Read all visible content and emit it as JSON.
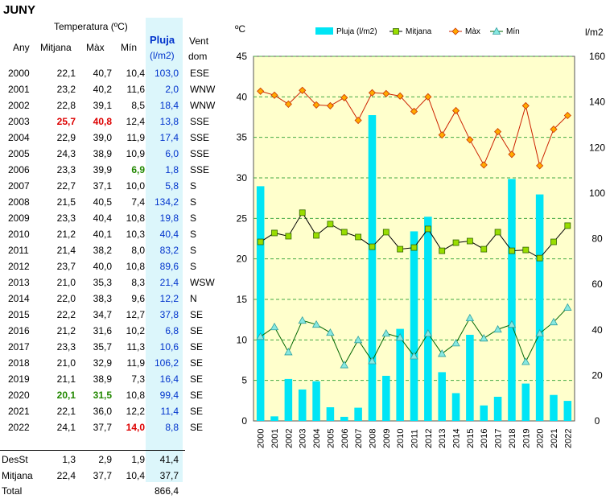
{
  "title": "JUNY",
  "table": {
    "header_group": "Temperatura (ºC)",
    "col_any": "Any",
    "col_mitjana": "Mitjana",
    "col_max": "Màx",
    "col_min": "Mín",
    "col_pluja": "Pluja",
    "col_pluja_unit": "(l/m2)",
    "col_vent": "Vent",
    "col_vent2": "dom",
    "rows": [
      {
        "any": "2000",
        "mitjana": "22,1",
        "max": "40,7",
        "min": "10,4",
        "pluja": "103,0",
        "vent": "ESE"
      },
      {
        "any": "2001",
        "mitjana": "23,2",
        "max": "40,2",
        "min": "11,6",
        "pluja": "2,0",
        "vent": "WNW"
      },
      {
        "any": "2002",
        "mitjana": "22,8",
        "max": "39,1",
        "min": "8,5",
        "pluja": "18,4",
        "vent": "WNW"
      },
      {
        "any": "2003",
        "mitjana": "25,7",
        "max": "40,8",
        "min": "12,4",
        "pluja": "13,8",
        "vent": "SSE",
        "hl_mitjana": "red",
        "hl_max": "red"
      },
      {
        "any": "2004",
        "mitjana": "22,9",
        "max": "39,0",
        "min": "11,9",
        "pluja": "17,4",
        "vent": "SSE"
      },
      {
        "any": "2005",
        "mitjana": "24,3",
        "max": "38,9",
        "min": "10,9",
        "pluja": "6,0",
        "vent": "SSE"
      },
      {
        "any": "2006",
        "mitjana": "23,3",
        "max": "39,9",
        "min": "6,9",
        "pluja": "1,8",
        "vent": "SSE",
        "hl_min": "green"
      },
      {
        "any": "2007",
        "mitjana": "22,7",
        "max": "37,1",
        "min": "10,0",
        "pluja": "5,8",
        "vent": "S"
      },
      {
        "any": "2008",
        "mitjana": "21,5",
        "max": "40,5",
        "min": "7,4",
        "pluja": "134,2",
        "vent": "S"
      },
      {
        "any": "2009",
        "mitjana": "23,3",
        "max": "40,4",
        "min": "10,8",
        "pluja": "19,8",
        "vent": "S"
      },
      {
        "any": "2010",
        "mitjana": "21,2",
        "max": "40,1",
        "min": "10,3",
        "pluja": "40,4",
        "vent": "S"
      },
      {
        "any": "2011",
        "mitjana": "21,4",
        "max": "38,2",
        "min": "8,0",
        "pluja": "83,2",
        "vent": "S"
      },
      {
        "any": "2012",
        "mitjana": "23,7",
        "max": "40,0",
        "min": "10,8",
        "pluja": "89,6",
        "vent": "S"
      },
      {
        "any": "2013",
        "mitjana": "21,0",
        "max": "35,3",
        "min": "8,3",
        "pluja": "21,4",
        "vent": "WSW"
      },
      {
        "any": "2014",
        "mitjana": "22,0",
        "max": "38,3",
        "min": "9,6",
        "pluja": "12,2",
        "vent": "N"
      },
      {
        "any": "2015",
        "mitjana": "22,2",
        "max": "34,7",
        "min": "12,7",
        "pluja": "37,8",
        "vent": "SE"
      },
      {
        "any": "2016",
        "mitjana": "21,2",
        "max": "31,6",
        "min": "10,2",
        "pluja": "6,8",
        "vent": "SE"
      },
      {
        "any": "2017",
        "mitjana": "23,3",
        "max": "35,7",
        "min": "11,3",
        "pluja": "10,6",
        "vent": "SE"
      },
      {
        "any": "2018",
        "mitjana": "21,0",
        "max": "32,9",
        "min": "11,9",
        "pluja": "106,2",
        "vent": "SE"
      },
      {
        "any": "2019",
        "mitjana": "21,1",
        "max": "38,9",
        "min": "7,3",
        "pluja": "16,4",
        "vent": "SE"
      },
      {
        "any": "2020",
        "mitjana": "20,1",
        "max": "31,5",
        "min": "10,8",
        "pluja": "99,4",
        "vent": "SE",
        "hl_mitjana": "green",
        "hl_max": "green"
      },
      {
        "any": "2021",
        "mitjana": "22,1",
        "max": "36,0",
        "min": "12,2",
        "pluja": "11,4",
        "vent": "SE"
      },
      {
        "any": "2022",
        "mitjana": "24,1",
        "max": "37,7",
        "min": "14,0",
        "pluja": "8,8",
        "vent": "SE",
        "hl_min": "red"
      }
    ],
    "desst": {
      "label": "DesSt",
      "mitjana": "1,3",
      "max": "2,9",
      "min": "1,9",
      "pluja": "41,4"
    },
    "mitjana_row": {
      "label": "Mitjana",
      "mitjana": "22,4",
      "max": "37,7",
      "min": "10,4",
      "pluja": "37,7"
    },
    "total": {
      "label": "Total",
      "pluja": "866,4"
    }
  },
  "colors": {
    "highlight_red": "#dd0000",
    "highlight_green": "#228800",
    "plot_bg": "#ffffcc",
    "bar": "#00e5f5",
    "mitjana_line": "#000000",
    "mitjana_marker": "#99dd00",
    "max_line": "#cc2200",
    "max_marker": "#ffaa00",
    "min_line": "#006600",
    "min_marker": "#88e8e0",
    "grid": "#44aa44"
  },
  "chart_data": {
    "type": "bar+line",
    "left_axis_label": "ºC",
    "right_axis_label": "l/m2",
    "ylim_left": [
      0,
      45
    ],
    "ylim_right": [
      0,
      160
    ],
    "left_ticks": [
      0,
      5,
      10,
      15,
      20,
      25,
      30,
      35,
      40,
      45
    ],
    "right_ticks": [
      0,
      20,
      40,
      60,
      80,
      100,
      120,
      140,
      160
    ],
    "grid": "horizontal dashed",
    "legend_position": "top",
    "x": [
      "2000",
      "2001",
      "2002",
      "2003",
      "2004",
      "2005",
      "2006",
      "2007",
      "2008",
      "2009",
      "2010",
      "2011",
      "2012",
      "2013",
      "2014",
      "2015",
      "2016",
      "2017",
      "2018",
      "2019",
      "2020",
      "2021",
      "2022"
    ],
    "bars": {
      "name": "Pluja (l/m2)",
      "axis": "right",
      "values": [
        103.0,
        2.0,
        18.4,
        13.8,
        17.4,
        6.0,
        1.8,
        5.8,
        134.2,
        19.8,
        40.4,
        83.2,
        89.6,
        21.4,
        12.2,
        37.8,
        6.8,
        10.6,
        106.2,
        16.4,
        99.4,
        11.4,
        8.8
      ]
    },
    "series": [
      {
        "name": "Mitjana",
        "axis": "left",
        "marker": "square",
        "values": [
          22.1,
          23.2,
          22.8,
          25.7,
          22.9,
          24.3,
          23.3,
          22.7,
          21.5,
          23.3,
          21.2,
          21.4,
          23.7,
          21.0,
          22.0,
          22.2,
          21.2,
          23.3,
          21.0,
          21.1,
          20.1,
          22.1,
          24.1
        ]
      },
      {
        "name": "Màx",
        "axis": "left",
        "marker": "diamond",
        "values": [
          40.7,
          40.2,
          39.1,
          40.8,
          39.0,
          38.9,
          39.9,
          37.1,
          40.5,
          40.4,
          40.1,
          38.2,
          40.0,
          35.3,
          38.3,
          34.7,
          31.6,
          35.7,
          32.9,
          38.9,
          31.5,
          36.0,
          37.7
        ]
      },
      {
        "name": "Mín",
        "axis": "left",
        "marker": "triangle",
        "values": [
          10.4,
          11.6,
          8.5,
          12.4,
          11.9,
          10.9,
          6.9,
          10.0,
          7.4,
          10.8,
          10.3,
          8.0,
          10.8,
          8.3,
          9.6,
          12.7,
          10.2,
          11.3,
          11.9,
          7.3,
          10.8,
          12.2,
          14.0
        ]
      }
    ]
  }
}
